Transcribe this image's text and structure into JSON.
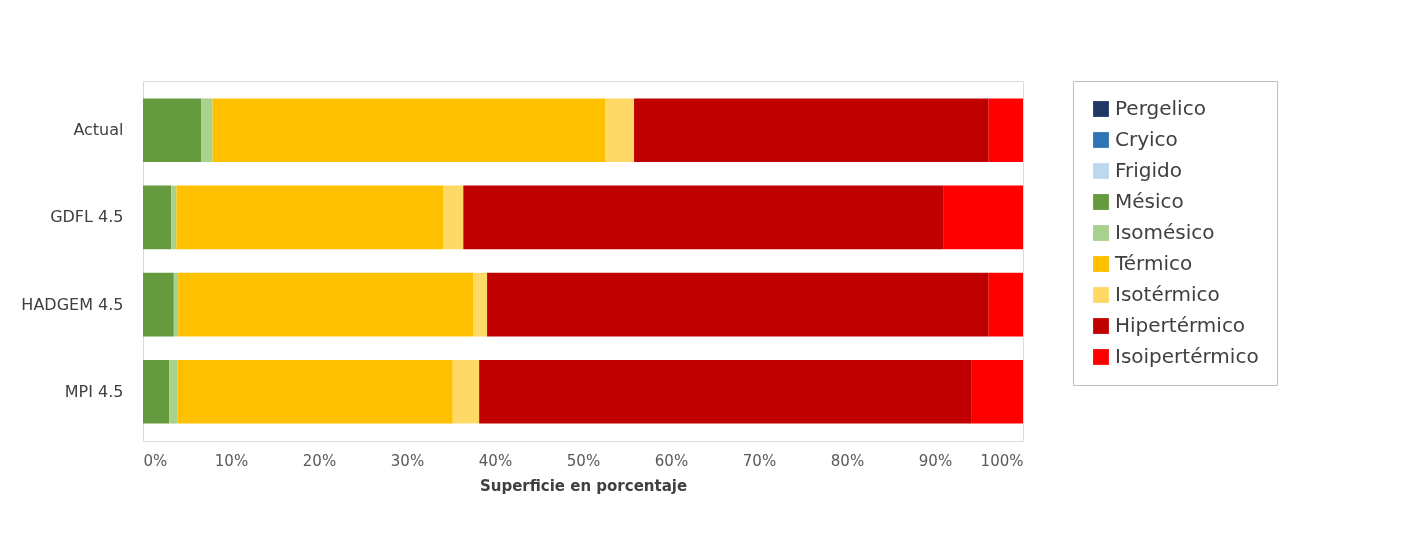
{
  "chart_data": {
    "type": "bar",
    "orientation": "horizontal",
    "stacked": true,
    "xlabel": "Superficie en porcentaje",
    "categories": [
      "Actual",
      "GDFL 4.5",
      "HADGEM 4.5",
      "MPI 4.5"
    ],
    "series": [
      {
        "name": "Pergelico",
        "color": "#1f3864",
        "values": [
          0,
          0,
          0,
          0
        ]
      },
      {
        "name": "Cryico",
        "color": "#2e75b6",
        "values": [
          0,
          0,
          0,
          0
        ]
      },
      {
        "name": "Frigido",
        "color": "#bdd7ee",
        "values": [
          0,
          0,
          0,
          0
        ]
      },
      {
        "name": "Mésico",
        "color": "#669a3e",
        "values": [
          6.6,
          3.2,
          3.5,
          3.0
        ]
      },
      {
        "name": "Isomésico",
        "color": "#a9d18e",
        "values": [
          1.3,
          0.6,
          0.5,
          0.9
        ]
      },
      {
        "name": "Térmico",
        "color": "#ffc000",
        "values": [
          44.6,
          30.3,
          33.5,
          31.3
        ]
      },
      {
        "name": "Isotérmico",
        "color": "#ffd966",
        "values": [
          3.3,
          2.3,
          1.6,
          3.0
        ]
      },
      {
        "name": "Hipertérmico",
        "color": "#c00000",
        "values": [
          40.3,
          54.6,
          57.0,
          55.9
        ]
      },
      {
        "name": "Isoipertérmico",
        "color": "#ff0000",
        "values": [
          3.9,
          9.0,
          3.9,
          5.9
        ]
      }
    ],
    "xlim": [
      0,
      100
    ],
    "xticks": [
      {
        "value": 0,
        "label": "0%"
      },
      {
        "value": 10,
        "label": "10%"
      },
      {
        "value": 20,
        "label": "20%"
      },
      {
        "value": 30,
        "label": "30%"
      },
      {
        "value": 40,
        "label": "40%"
      },
      {
        "value": 50,
        "label": "50%"
      },
      {
        "value": 60,
        "label": "60%"
      },
      {
        "value": 70,
        "label": "70%"
      },
      {
        "value": 80,
        "label": "80%"
      },
      {
        "value": 90,
        "label": "90%"
      },
      {
        "value": 100,
        "label": "100%"
      }
    ],
    "grid": false,
    "legend": "right"
  }
}
